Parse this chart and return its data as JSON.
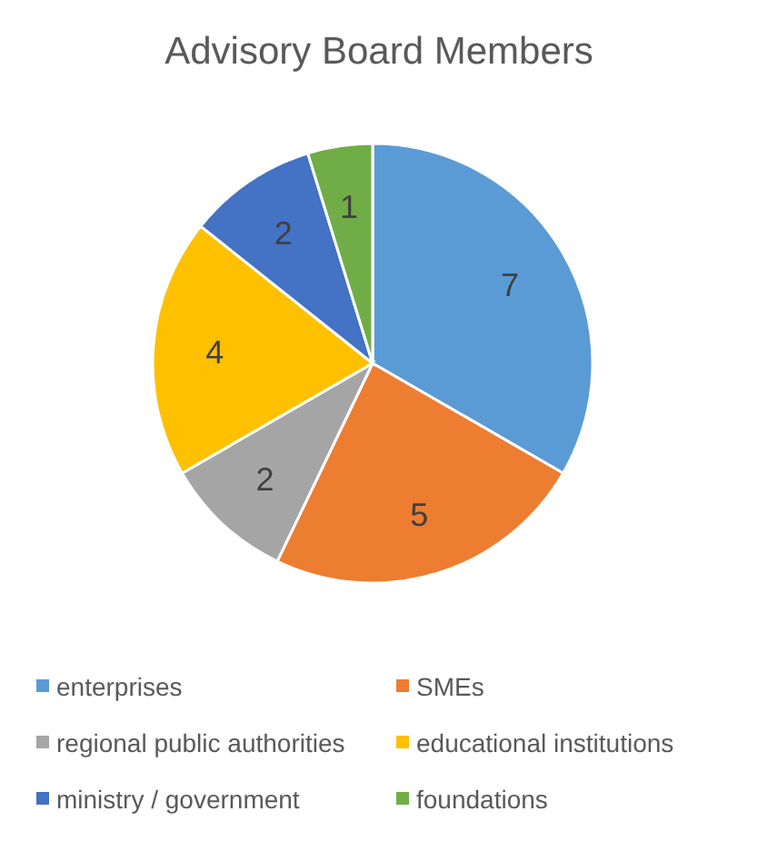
{
  "chart_data": {
    "type": "pie",
    "title": "Advisory Board Members",
    "categories": [
      "enterprises",
      "SMEs",
      "regional public authorities",
      "educational institutions",
      "ministry / government",
      "foundations"
    ],
    "values": [
      7,
      5,
      2,
      4,
      2,
      1
    ],
    "colors": [
      "#5b9bd5",
      "#ed7d31",
      "#a5a5a5",
      "#ffc000",
      "#4472c4",
      "#70ad47"
    ],
    "data_labels": true,
    "legend": "bottom"
  }
}
